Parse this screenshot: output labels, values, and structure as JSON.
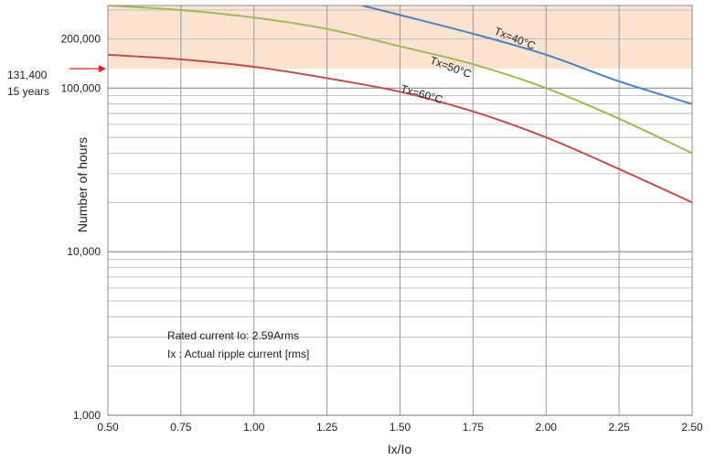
{
  "chart_data": {
    "type": "line",
    "xlabel": "Ix/Io",
    "ylabel": "Number of hours",
    "y_scale": "log",
    "xlim": [
      0.5,
      2.5
    ],
    "ylim": [
      1000,
      320000
    ],
    "grid": true,
    "x_ticks": [
      "0.50",
      "0.75",
      "1.00",
      "1.25",
      "1.50",
      "1.75",
      "2.00",
      "2.25",
      "2.50"
    ],
    "y_ticks": [
      {
        "value": 1000,
        "label": "1,000"
      },
      {
        "value": 10000,
        "label": "10,000"
      },
      {
        "value": 100000,
        "label": "100,000"
      },
      {
        "value": 200000,
        "label": "200,000"
      }
    ],
    "highlight_band": {
      "from": 131400,
      "to": 320000,
      "color": "#fbe3d2"
    },
    "reference": {
      "value": 131400,
      "line1": "131,400",
      "line2": "15 years",
      "color": "#e02020"
    },
    "notes": [
      "Rated current Io: 2.59Arms",
      "Ix : Actual ripple current [rms]"
    ],
    "series": [
      {
        "name": "Tx=40°C",
        "color": "#4f81bd",
        "x": [
          1.37,
          1.5,
          1.75,
          2.0,
          2.25,
          2.5
        ],
        "y": [
          320000,
          280000,
          215000,
          160000,
          110000,
          80000
        ]
      },
      {
        "name": "Tx=50°C",
        "color": "#9bbb59",
        "x": [
          0.5,
          0.75,
          1.0,
          1.25,
          1.5,
          1.75,
          2.0,
          2.25,
          2.5
        ],
        "y": [
          320000,
          300000,
          270000,
          230000,
          180000,
          140000,
          100000,
          65000,
          40000
        ]
      },
      {
        "name": "Tx=60°C",
        "color": "#c0504d",
        "x": [
          0.5,
          0.75,
          1.0,
          1.25,
          1.5,
          1.75,
          2.0,
          2.25,
          2.5
        ],
        "y": [
          160000,
          150000,
          135000,
          115000,
          95000,
          72000,
          50000,
          32000,
          20000
        ]
      }
    ]
  }
}
